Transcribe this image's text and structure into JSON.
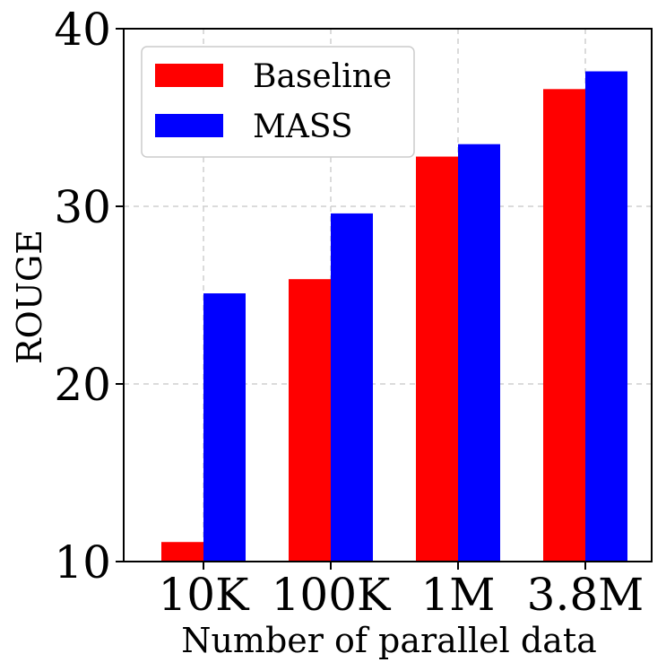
{
  "chart_data": {
    "type": "bar",
    "categories": [
      "10K",
      "100K",
      "1M",
      "3.8M"
    ],
    "series": [
      {
        "name": "Baseline",
        "values": [
          11.1,
          25.9,
          32.8,
          36.6
        ],
        "color": "#ff0000"
      },
      {
        "name": "MASS",
        "values": [
          25.1,
          29.6,
          33.5,
          37.6
        ],
        "color": "#0000ff"
      }
    ],
    "xlabel": "Number of parallel data",
    "ylabel": "ROUGE",
    "ylim": [
      10,
      40
    ],
    "yticks": [
      10,
      20,
      30,
      40
    ],
    "grid": true,
    "legend_position": "top-left"
  }
}
